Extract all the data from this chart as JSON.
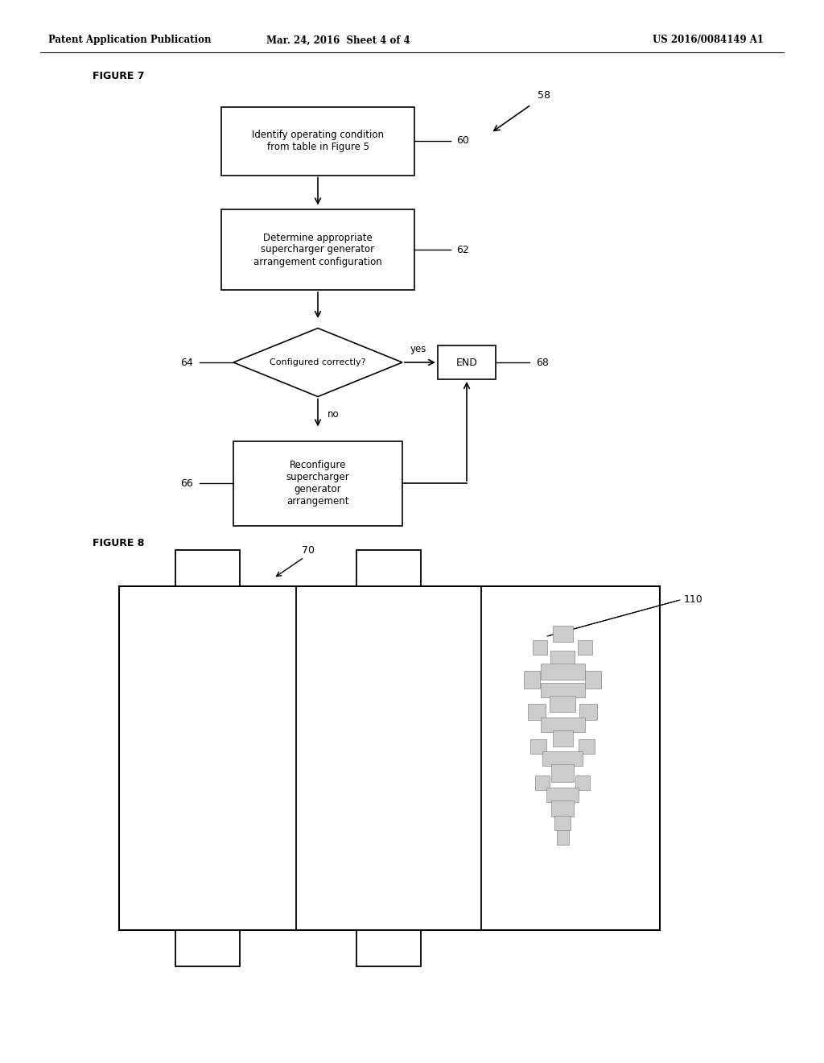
{
  "header_left": "Patent Application Publication",
  "header_mid": "Mar. 24, 2016  Sheet 4 of 4",
  "header_right": "US 2016/0084149 A1",
  "fig7_label": "FIGURE 7",
  "fig8_label": "FIGURE 8",
  "box1_text": "Identify operating condition\nfrom table in Figure 5",
  "box1_label": "60",
  "box2_text": "Determine appropriate\nsupercharger generator\narrangement configuration",
  "box2_label": "62",
  "diamond_text": "Configured correctly?",
  "diamond_label": "64",
  "end_text": "END",
  "end_label": "68",
  "reconfigure_text": "Reconfigure\nsupercharger\ngenerator\narrangement",
  "reconfigure_label": "66",
  "arrow58_label": "58",
  "yes_label": "yes",
  "no_label": "no",
  "fig8_label70": "70",
  "fig8_label110": "110",
  "bg_color": "#ffffff",
  "box_color": "#000000",
  "text_color": "#000000"
}
